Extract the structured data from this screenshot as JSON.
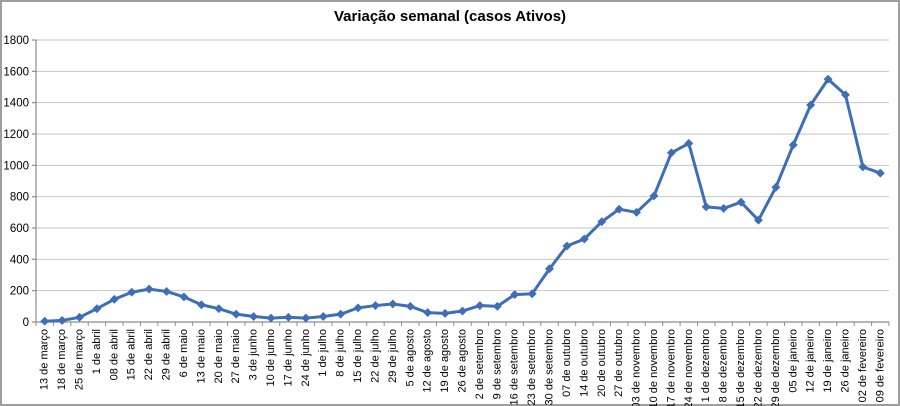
{
  "chart": {
    "title": "Variação semanal (casos Ativos)"
  },
  "chart_data": {
    "type": "line",
    "title": "Variação semanal (casos Ativos)",
    "xlabel": "",
    "ylabel": "",
    "ylim": [
      0,
      1800
    ],
    "ytick_interval": 200,
    "ytick_labels": [
      "0",
      "200",
      "400",
      "600",
      "800",
      "1000",
      "1200",
      "1400",
      "1600",
      "1800"
    ],
    "grid": true,
    "legend_position": "none",
    "marker": "diamond",
    "categories": [
      "13 de março",
      "18 de março",
      "25 de março",
      "1 de abril",
      "08 de abril",
      "15 de abril",
      "22 de abril",
      "29 de abril",
      "6 de maio",
      "13 de maio",
      "20 de maio",
      "27 de maio",
      "3 de junho",
      "10 de junho",
      "17 de junho",
      "24 de junho",
      "1 de julho",
      "8 de julho",
      "15 de julho",
      "22 de julho",
      "29 de julho",
      "5 de agosto",
      "12 de agosto",
      "19 de agosto",
      "26 de agosto",
      "2 de setembro",
      "9 de setembro",
      "16 de setembro",
      "23 de setembro",
      "30 de setembro",
      "07 de outubro",
      "14 de outubro",
      "20 de outubro",
      "27 de outubro",
      "03 de novembro",
      "10 de novembro",
      "17 de novembro",
      "24 de novembro",
      "1 de dezembro",
      "8 de dezembro",
      "15 de dezembro",
      "22 de dezembro",
      "29 de dezembro",
      "05 de janeiro",
      "12 de janeiro",
      "19 de janeiro",
      "26 de janeiro",
      "02 de fevereiro",
      "09 de fevereiro"
    ],
    "values": [
      5,
      10,
      30,
      85,
      145,
      190,
      210,
      195,
      160,
      110,
      85,
      50,
      35,
      25,
      30,
      25,
      35,
      50,
      90,
      105,
      115,
      100,
      60,
      55,
      70,
      105,
      100,
      175,
      180,
      340,
      485,
      530,
      640,
      720,
      700,
      805,
      1080,
      1140,
      735,
      725,
      765,
      650,
      860,
      1130,
      1385,
      1550,
      1450,
      990,
      950
    ],
    "colors": {
      "series": "#3E6EB6",
      "gridline": "#C6C6C6",
      "axis": "#8C8C8C",
      "tick_label": "#000000",
      "title": "#000000",
      "frame_border": "#9E9E9E",
      "background": "#FFFFFF"
    }
  }
}
